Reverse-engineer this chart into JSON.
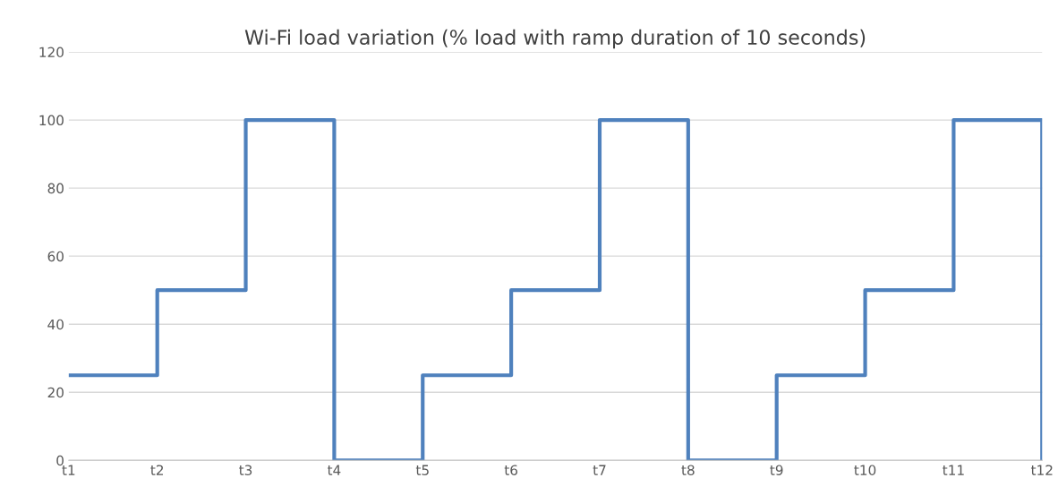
{
  "chart_data": {
    "type": "step",
    "title": "Wi-Fi load variation (% load with ramp duration of 10 seconds)",
    "categories": [
      "t1",
      "t2",
      "t3",
      "t4",
      "t5",
      "t6",
      "t7",
      "t8",
      "t9",
      "t10",
      "t11",
      "t12"
    ],
    "series": [
      {
        "color": "#4f81bd",
        "values": [
          25,
          50,
          100,
          0,
          25,
          50,
          100,
          0,
          25,
          50,
          100,
          0
        ]
      }
    ],
    "ylim": [
      0,
      120
    ],
    "yticks": [
      0,
      20,
      40,
      60,
      80,
      100,
      120
    ],
    "grid": "y",
    "line_style": "solid",
    "marker": "none"
  }
}
